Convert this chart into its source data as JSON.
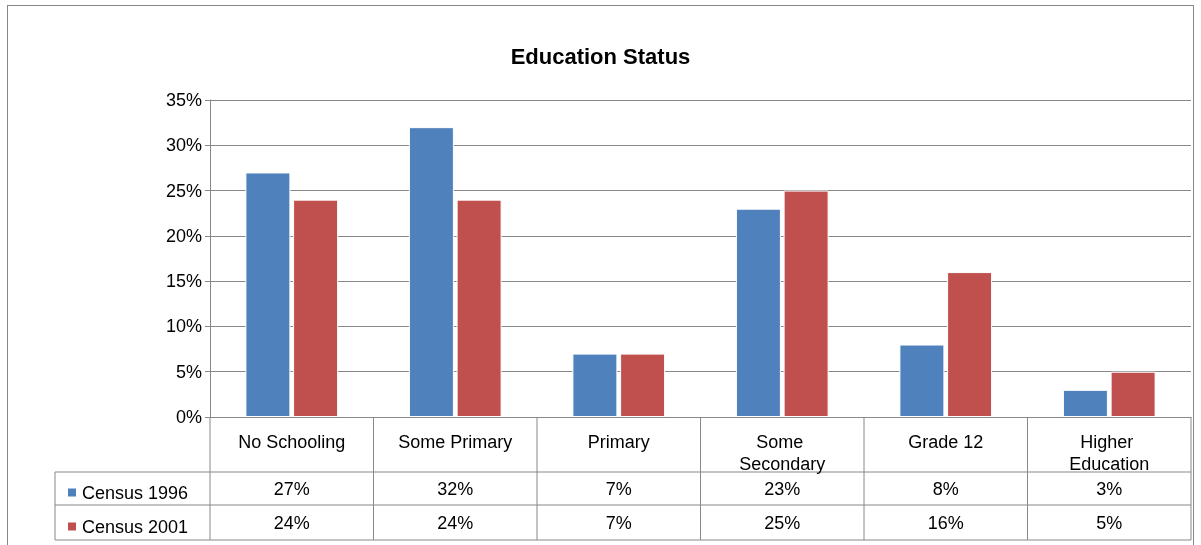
{
  "chart_data": {
    "type": "bar",
    "title": "Education Status",
    "categories": [
      "No Schooling",
      "Some Primary",
      "Primary",
      "Some Secondary",
      "Grade 12",
      "Higher Education"
    ],
    "series": [
      {
        "name": "Census 1996",
        "color": "#4f81bd",
        "values": [
          27,
          32,
          7,
          23,
          8,
          3
        ],
        "value_labels": [
          "27%",
          "32%",
          "7%",
          "23%",
          "8%",
          "3%"
        ]
      },
      {
        "name": "Census 2001",
        "color": "#c0504d",
        "values": [
          24,
          24,
          7,
          25,
          16,
          5
        ],
        "value_labels": [
          "24%",
          "24%",
          "7%",
          "25%",
          "16%",
          "5%"
        ]
      }
    ],
    "ylim": [
      0,
      35
    ],
    "yticks": [
      {
        "value": 0,
        "label": "0%"
      },
      {
        "value": 5,
        "label": "5%"
      },
      {
        "value": 10,
        "label": "10%"
      },
      {
        "value": 15,
        "label": "15%"
      },
      {
        "value": 20,
        "label": "20%"
      },
      {
        "value": 25,
        "label": "25%"
      },
      {
        "value": 30,
        "label": "30%"
      },
      {
        "value": 35,
        "label": "35%"
      }
    ],
    "grid": "y",
    "legend": "bottom left"
  }
}
